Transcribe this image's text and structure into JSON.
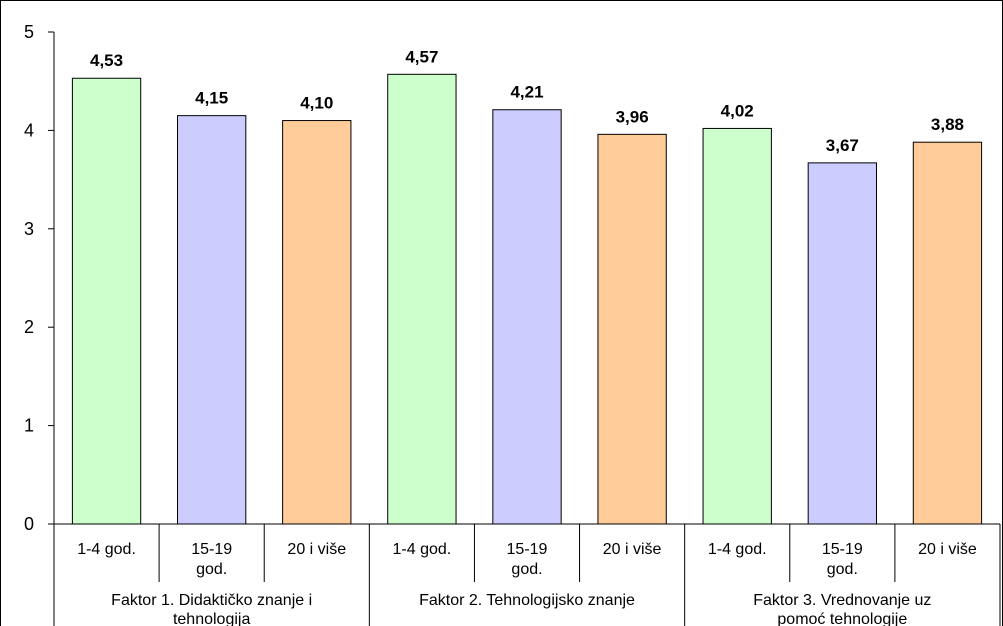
{
  "chart_data": {
    "type": "bar",
    "title": "",
    "xlabel": "",
    "ylabel": "",
    "ylim": [
      0,
      5
    ],
    "yticks": [
      "0",
      "1",
      "2",
      "3",
      "4",
      "5"
    ],
    "grid": false,
    "legend": "none",
    "groups": [
      {
        "label_lines": [
          "Faktor 1. Didaktičko znanje i",
          "tehnologija"
        ],
        "bars": [
          {
            "label_lines": [
              "1-4 god."
            ],
            "value": 4.53,
            "value_label": "4,53",
            "color": "#ccffcc"
          },
          {
            "label_lines": [
              "15-19",
              "god."
            ],
            "value": 4.15,
            "value_label": "4,15",
            "color": "#ccccff"
          },
          {
            "label_lines": [
              "20 i više"
            ],
            "value": 4.1,
            "value_label": "4,10",
            "color": "#ffcc99"
          }
        ]
      },
      {
        "label_lines": [
          "Faktor 2. Tehnologijsko znanje"
        ],
        "bars": [
          {
            "label_lines": [
              "1-4 god."
            ],
            "value": 4.57,
            "value_label": "4,57",
            "color": "#ccffcc"
          },
          {
            "label_lines": [
              "15-19",
              "god."
            ],
            "value": 4.21,
            "value_label": "4,21",
            "color": "#ccccff"
          },
          {
            "label_lines": [
              "20 i više"
            ],
            "value": 3.96,
            "value_label": "3,96",
            "color": "#ffcc99"
          }
        ]
      },
      {
        "label_lines": [
          "Faktor 3. Vrednovanje uz",
          "pomoć tehnologije"
        ],
        "bars": [
          {
            "label_lines": [
              "1-4 god."
            ],
            "value": 4.02,
            "value_label": "4,02",
            "color": "#ccffcc"
          },
          {
            "label_lines": [
              "15-19",
              "god."
            ],
            "value": 3.67,
            "value_label": "3,67",
            "color": "#ccccff"
          },
          {
            "label_lines": [
              "20 i više"
            ],
            "value": 3.88,
            "value_label": "3,88",
            "color": "#ffcc99"
          }
        ]
      }
    ]
  }
}
